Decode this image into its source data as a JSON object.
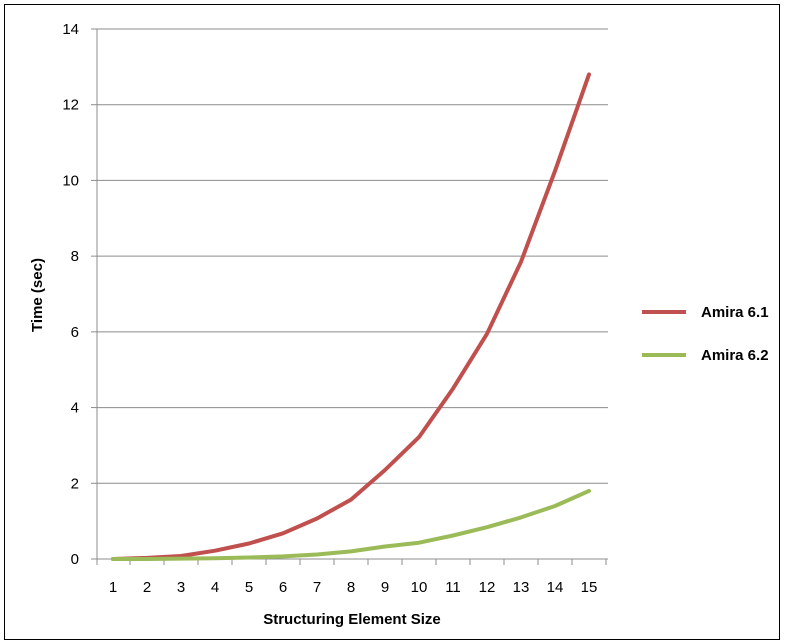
{
  "chart_data": {
    "type": "line",
    "title": "",
    "xlabel": "Structuring Element Size",
    "ylabel": "Time (sec)",
    "x": [
      1,
      2,
      3,
      4,
      5,
      6,
      7,
      8,
      9,
      10,
      11,
      12,
      13,
      14,
      15
    ],
    "ylim": [
      0,
      14
    ],
    "yticks": [
      0,
      2,
      4,
      6,
      8,
      10,
      12,
      14
    ],
    "grid": true,
    "legend_position": "right",
    "series": [
      {
        "name": "Amira 6.1",
        "color": "#c0504d",
        "values": [
          0.0,
          0.03,
          0.08,
          0.22,
          0.41,
          0.68,
          1.07,
          1.57,
          2.35,
          3.22,
          4.5,
          5.95,
          7.85,
          10.25,
          12.8
        ]
      },
      {
        "name": "Amira 6.2",
        "color": "#9bbb59",
        "values": [
          0.0,
          0.0,
          0.01,
          0.02,
          0.04,
          0.07,
          0.12,
          0.2,
          0.33,
          0.43,
          0.62,
          0.84,
          1.1,
          1.4,
          1.8
        ]
      }
    ]
  }
}
